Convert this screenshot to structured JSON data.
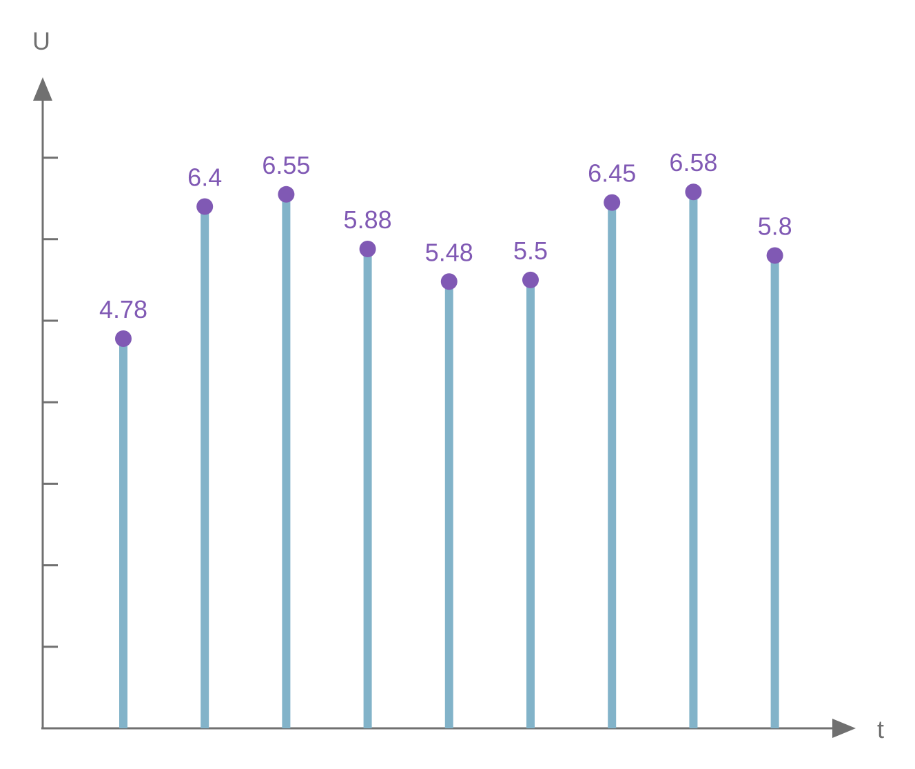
{
  "chart_data": {
    "type": "bar",
    "style": "stem",
    "title": "",
    "xlabel": "t",
    "ylabel": "U",
    "x": [
      1,
      2,
      3,
      4,
      5,
      6,
      7,
      8,
      9
    ],
    "values": [
      4.78,
      6.4,
      6.55,
      5.88,
      5.48,
      5.5,
      6.45,
      6.58,
      5.8
    ],
    "data_labels": [
      "4.78",
      "6.4",
      "6.55",
      "5.88",
      "5.48",
      "5.5",
      "6.45",
      "6.58",
      "5.8"
    ],
    "ylim": [
      0,
      8
    ],
    "y_ticks": [
      1,
      2,
      3,
      4,
      5,
      6,
      7
    ],
    "y_tick_labels_shown": false,
    "x_tick_labels_shown": false,
    "grid": false,
    "legend": "none",
    "colors": {
      "axis": "#707070",
      "stem": "#82b3c9",
      "point": "#8059b4",
      "label": "#8059b4"
    }
  }
}
